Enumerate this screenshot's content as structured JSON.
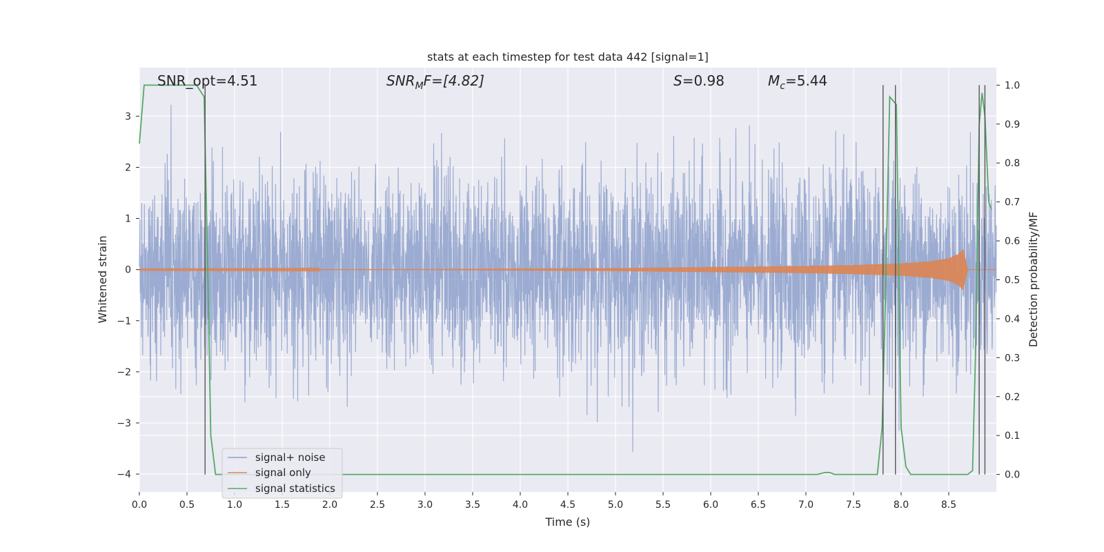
{
  "chart_data": {
    "type": "line",
    "title": "stats at each timestep for test data 442 [signal=1]",
    "xlabel": "Time (s)",
    "ylabel": "Whitened strain",
    "y2label": "Detection probability/MF",
    "xlim": [
      0.0,
      9.0
    ],
    "ylim": [
      -4.35,
      3.95
    ],
    "y2lim": [
      -0.045,
      1.045
    ],
    "xticks": [
      0.0,
      0.5,
      1.0,
      1.5,
      2.0,
      2.5,
      3.0,
      3.5,
      4.0,
      4.5,
      5.0,
      5.5,
      6.0,
      6.5,
      7.0,
      7.5,
      8.0,
      8.5
    ],
    "xtick_labels": [
      "0.0",
      "0.5",
      "1.0",
      "1.5",
      "2.0",
      "2.5",
      "3.0",
      "3.5",
      "4.0",
      "4.5",
      "5.0",
      "5.5",
      "6.0",
      "6.5",
      "7.0",
      "7.5",
      "8.0",
      "8.5"
    ],
    "yticks": [
      3,
      2,
      1,
      0,
      -1,
      -2,
      -3,
      -4
    ],
    "ytick_labels": [
      "3",
      "2",
      "1",
      "0",
      "−1",
      "−2",
      "−3",
      "−4"
    ],
    "y2ticks": [
      1.0,
      0.9,
      0.8,
      0.7,
      0.6,
      0.5,
      0.4,
      0.3,
      0.2,
      0.1,
      0.0
    ],
    "y2tick_labels": [
      "1.0",
      "0.9",
      "0.8",
      "0.7",
      "0.6",
      "0.5",
      "0.4",
      "0.3",
      "0.2",
      "0.1",
      "0.0"
    ],
    "grid": true,
    "legend_position": "lower-left",
    "annotations": {
      "snr_opt": "SNR_opt=4.51",
      "snr_mf_symbol": "SNR",
      "snr_mf_sub": "M",
      "snr_mf_value": "F=[4.82]",
      "s_symbol": "S",
      "s_value": "=0.98",
      "mc_symbol": "M",
      "mc_sub": "c",
      "mc_value": "=5.44"
    },
    "series": [
      {
        "name": "signal+ noise",
        "axis": "left",
        "color": "#8da0cb",
        "description_values": "noise-like strain, approx range",
        "amplitude_range": [
          -4.0,
          3.6
        ]
      },
      {
        "name": "signal only",
        "axis": "left",
        "color": "#dd8452",
        "chirp_envelope": {
          "t": [
            0.0,
            3.0,
            5.0,
            6.0,
            7.0,
            7.5,
            8.0,
            8.3,
            8.5,
            8.6,
            8.65,
            8.7
          ],
          "amp": [
            0.005,
            0.01,
            0.03,
            0.05,
            0.07,
            0.09,
            0.12,
            0.16,
            0.22,
            0.3,
            0.4,
            0.0
          ]
        }
      },
      {
        "name": "signal statistics",
        "axis": "right",
        "color": "#55a868",
        "x": [
          0.0,
          0.05,
          0.1,
          0.6,
          0.68,
          0.72,
          0.75,
          0.8,
          1.0,
          3.0,
          5.0,
          7.0,
          7.12,
          7.2,
          7.25,
          7.3,
          7.5,
          7.7,
          7.75,
          7.8,
          7.83,
          7.88,
          7.95,
          8.0,
          8.05,
          8.1,
          8.5,
          8.7,
          8.75,
          8.78,
          8.82,
          8.85,
          8.88,
          8.92,
          8.95
        ],
        "y": [
          0.85,
          1.0,
          1.0,
          1.0,
          0.97,
          0.5,
          0.1,
          0.0,
          0.0,
          0.0,
          0.0,
          0.0,
          0.0,
          0.005,
          0.005,
          0.0,
          0.0,
          0.0,
          0.0,
          0.12,
          0.4,
          0.97,
          0.95,
          0.12,
          0.02,
          0.0,
          0.0,
          0.0,
          0.01,
          0.3,
          0.9,
          0.98,
          0.92,
          0.7,
          0.68
        ]
      }
    ],
    "vertical_lines": [
      0.69,
      7.81,
      7.94,
      8.82,
      8.88
    ],
    "horizontal_lines_right_axis": [
      0.7,
      0.6,
      0.5,
      0.3,
      0.2,
      0.1
    ]
  }
}
